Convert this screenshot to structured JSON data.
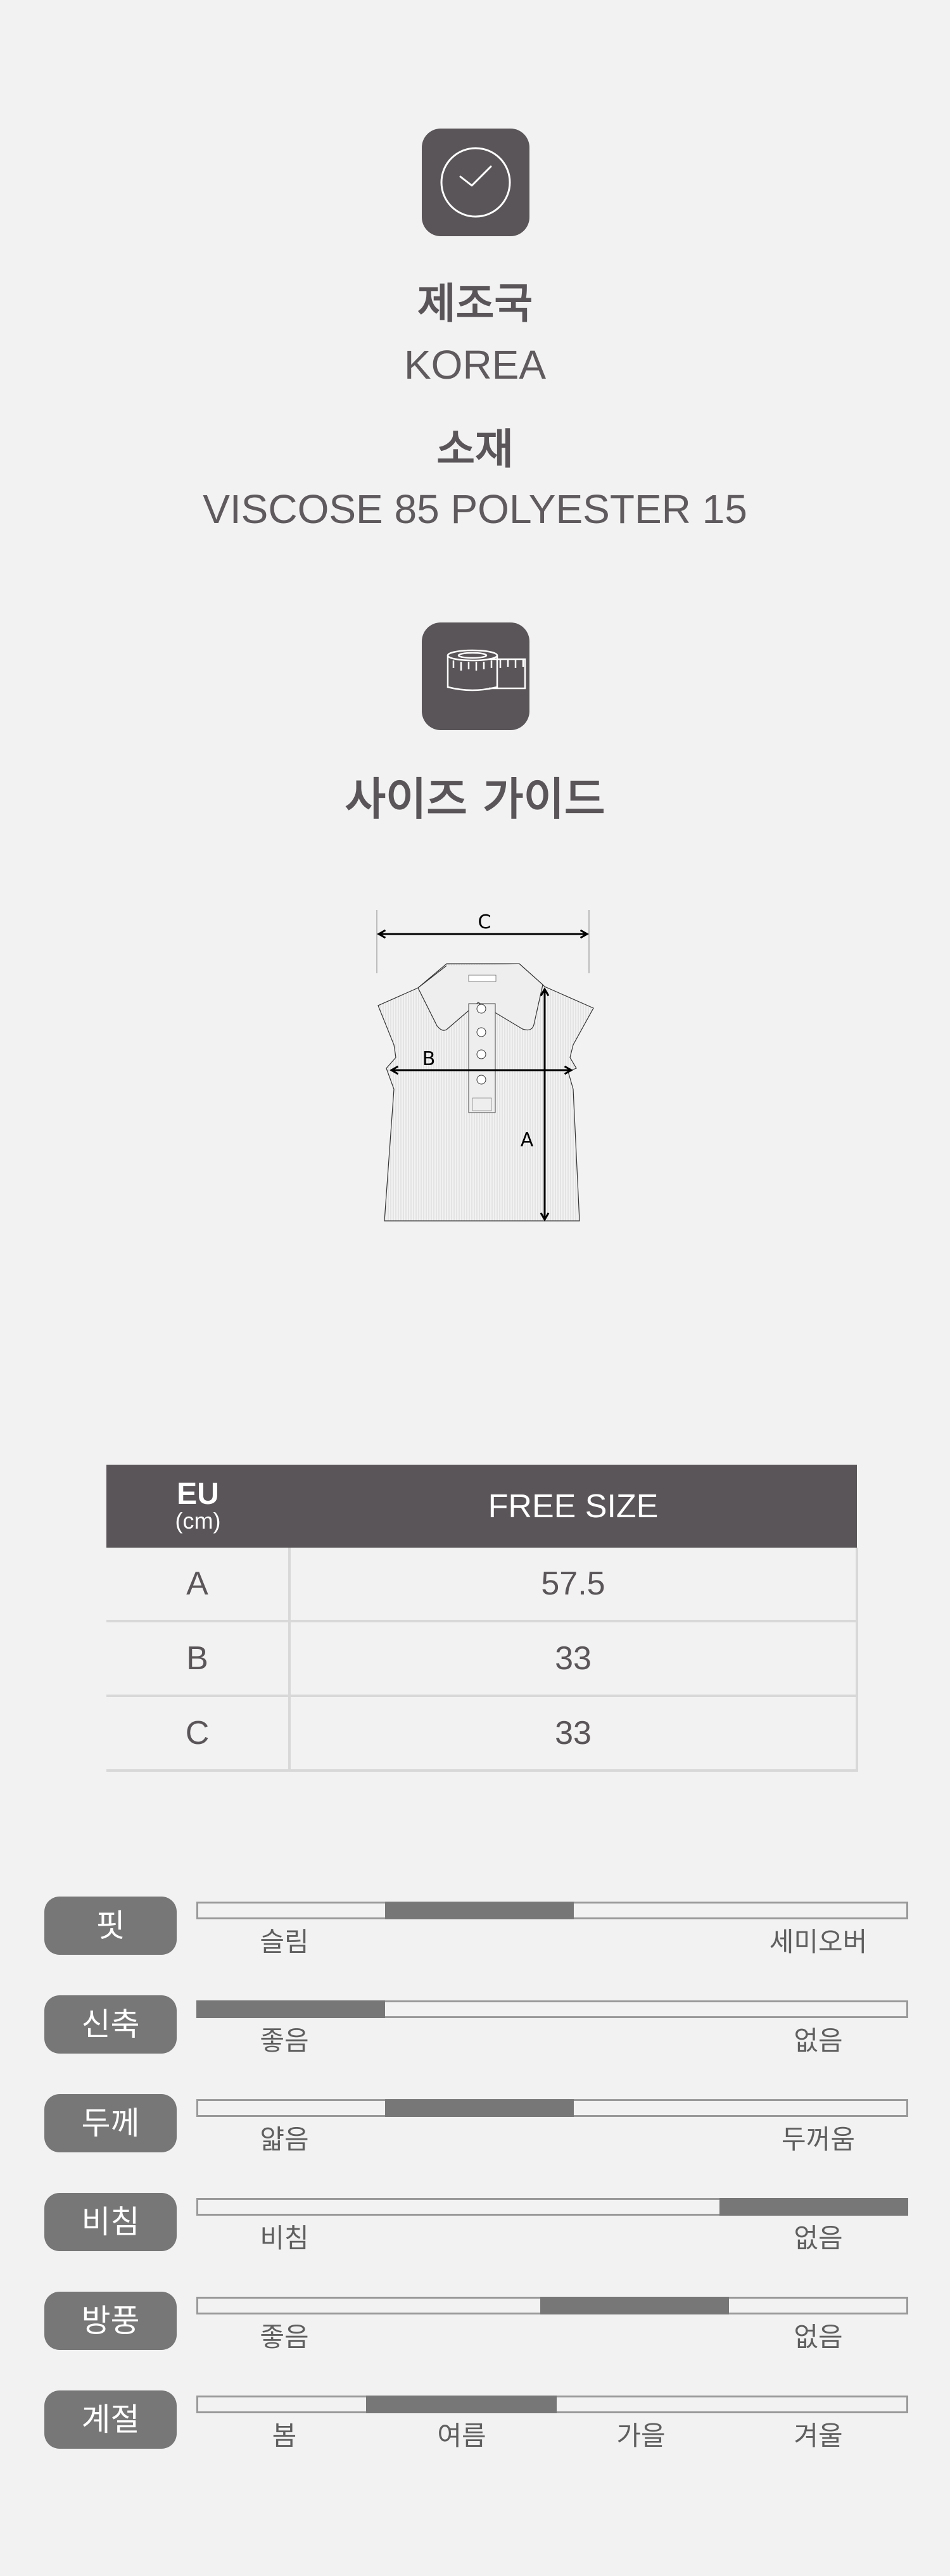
{
  "colors": {
    "background": "#f2f2f2",
    "icon_box": "#5a5558",
    "pill": "#777777",
    "bar_fill": "#777777",
    "bar_border": "#999999"
  },
  "origin": {
    "icon": "check-circle-icon",
    "label": "제조국",
    "value": "KOREA"
  },
  "material": {
    "label": "소재",
    "value": "VISCOSE 85 POLYESTER 15"
  },
  "size_guide": {
    "icon": "tape-measure-icon",
    "title": "사이즈 가이드"
  },
  "diagram": {
    "labels": {
      "a": "A",
      "b": "B",
      "c": "C"
    }
  },
  "size_table": {
    "header": {
      "unit_top": "EU",
      "unit_bottom": "(cm)",
      "size": "FREE SIZE"
    },
    "rows": [
      {
        "key": "A",
        "value": "57.5"
      },
      {
        "key": "B",
        "value": "33"
      },
      {
        "key": "C",
        "value": "33"
      }
    ]
  },
  "attributes": [
    {
      "label": "핏",
      "range": [
        0.265,
        0.53
      ],
      "scale": [
        "슬림",
        "세미오버"
      ]
    },
    {
      "label": "신축",
      "range": [
        0,
        0.265
      ],
      "scale": [
        "좋음",
        "없음"
      ]
    },
    {
      "label": "두께",
      "range": [
        0.265,
        0.53
      ],
      "scale": [
        "얇음",
        "두꺼움"
      ]
    },
    {
      "label": "비침",
      "range": [
        0.735,
        1
      ],
      "scale": [
        "비침",
        "없음"
      ]
    },
    {
      "label": "방풍",
      "range": [
        0.483,
        0.748
      ],
      "scale": [
        "좋음",
        "없음"
      ]
    },
    {
      "label": "계절",
      "range": [
        0.238,
        0.506
      ],
      "scale": [
        "봄",
        "여름",
        "가을",
        "겨울"
      ]
    }
  ]
}
